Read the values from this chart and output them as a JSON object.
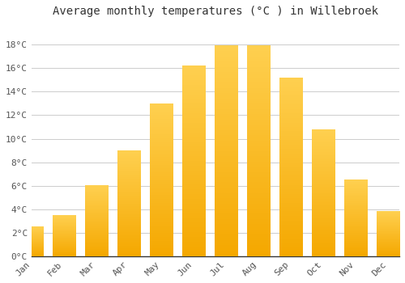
{
  "title": "Average monthly temperatures (°C ) in Willebroek",
  "months": [
    "Jan",
    "Feb",
    "Mar",
    "Apr",
    "May",
    "Jun",
    "Jul",
    "Aug",
    "Sep",
    "Oct",
    "Nov",
    "Dec"
  ],
  "values": [
    2.5,
    3.5,
    6.0,
    9.0,
    13.0,
    16.2,
    17.9,
    17.9,
    15.2,
    10.8,
    6.5,
    3.8
  ],
  "bar_color_light": "#FFD050",
  "bar_color_dark": "#F5A800",
  "background_color": "#FFFFFF",
  "grid_color": "#CCCCCC",
  "ylim": [
    0,
    20
  ],
  "yticks": [
    0,
    2,
    4,
    6,
    8,
    10,
    12,
    14,
    16,
    18
  ],
  "ytick_labels": [
    "0°C",
    "2°C",
    "4°C",
    "6°C",
    "8°C",
    "10°C",
    "12°C",
    "14°C",
    "16°C",
    "18°C"
  ],
  "title_fontsize": 10,
  "tick_fontsize": 8,
  "bar_width": 0.7
}
